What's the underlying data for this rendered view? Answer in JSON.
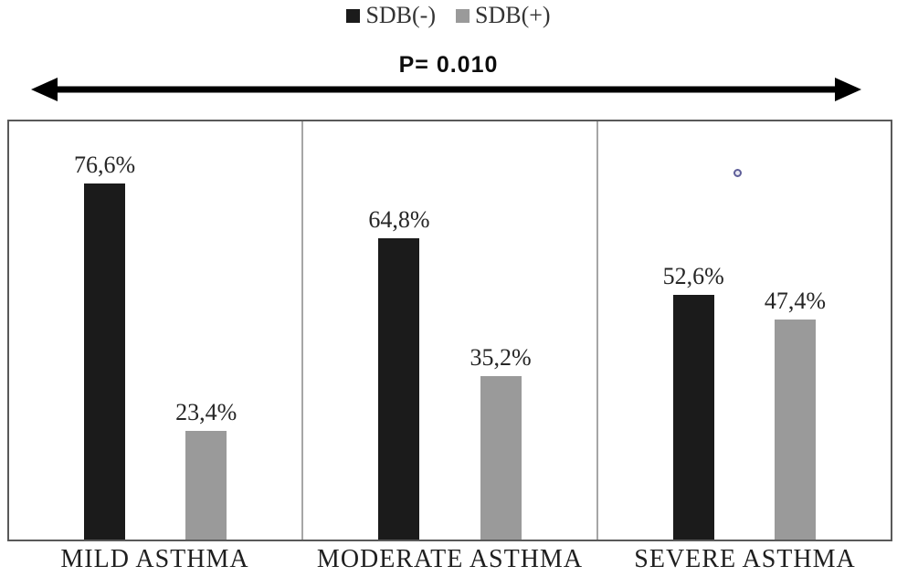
{
  "legend": {
    "items": [
      {
        "label": "SDB(-)",
        "color": "#1b1b1b"
      },
      {
        "label": "SDB(+)",
        "color": "#9a9a9a"
      }
    ]
  },
  "annotation": {
    "p_value_label": "P= 0.010"
  },
  "colors": {
    "bar_black": "#1b1b1b",
    "bar_gray": "#9a9a9a",
    "plot_border": "#595959",
    "panel_divider": "#a6a6a6",
    "arrow": "#000000",
    "ring_marker": "#5f5f99"
  },
  "chart_data": {
    "type": "bar",
    "title": "",
    "xlabel": "",
    "ylabel": "",
    "categories": [
      "MILD ASTHMA",
      "MODERATE ASTHMA",
      "SEVERE ASTHMA"
    ],
    "series": [
      {
        "name": "SDB(-)",
        "color": "#1b1b1b",
        "values": [
          76.6,
          64.8,
          52.6
        ],
        "labels": [
          "76,6%",
          "64,8%",
          "52,6%"
        ]
      },
      {
        "name": "SDB(+)",
        "color": "#9a9a9a",
        "values": [
          23.4,
          35.2,
          47.4
        ],
        "labels": [
          "23,4%",
          "35,2%",
          "47,4%"
        ]
      }
    ],
    "ylim": [
      0,
      90
    ],
    "grid": false,
    "legend_position": "top",
    "annotations": [
      "P= 0.010 span arrow across all categories"
    ]
  }
}
